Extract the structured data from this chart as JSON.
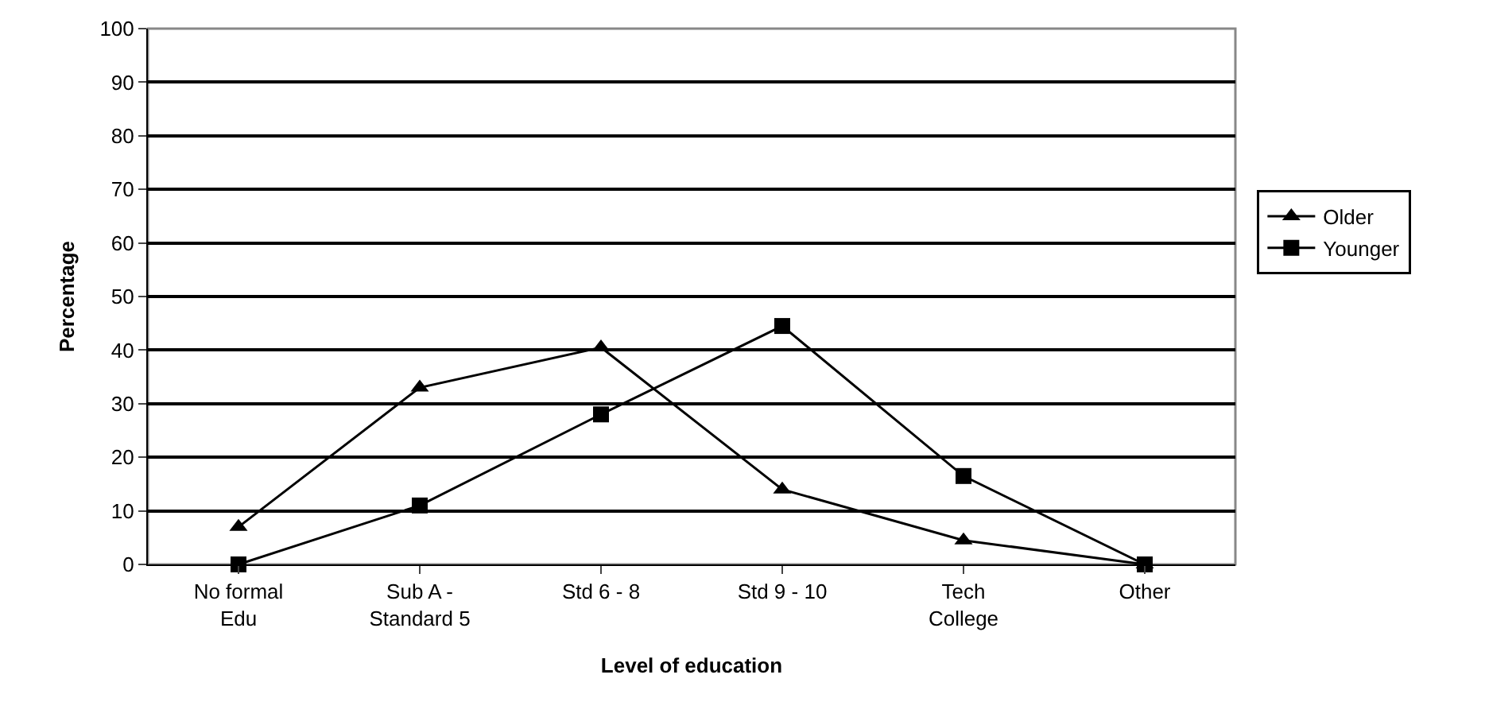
{
  "chart_data": {
    "type": "line",
    "xlabel": "Level of education",
    "ylabel": "Percentage",
    "categories": [
      "No formal\nEdu",
      "Sub A -\nStandard 5",
      "Std 6 - 8",
      "Std 9 - 10",
      "Tech\nCollege",
      "Other"
    ],
    "series": [
      {
        "name": "Older",
        "color": "#000000",
        "marker": "triangle",
        "values": [
          7,
          33,
          40.5,
          14,
          4.5,
          0
        ]
      },
      {
        "name": "Younger",
        "color": "#000000",
        "marker": "square",
        "values": [
          0,
          11,
          28,
          44.5,
          16.5,
          0
        ]
      }
    ],
    "ylim": [
      0,
      100
    ],
    "yticks": [
      0,
      10,
      20,
      30,
      40,
      50,
      60,
      70,
      80,
      90,
      100
    ],
    "grid": "y",
    "legend": "right",
    "line_style": "solid"
  }
}
